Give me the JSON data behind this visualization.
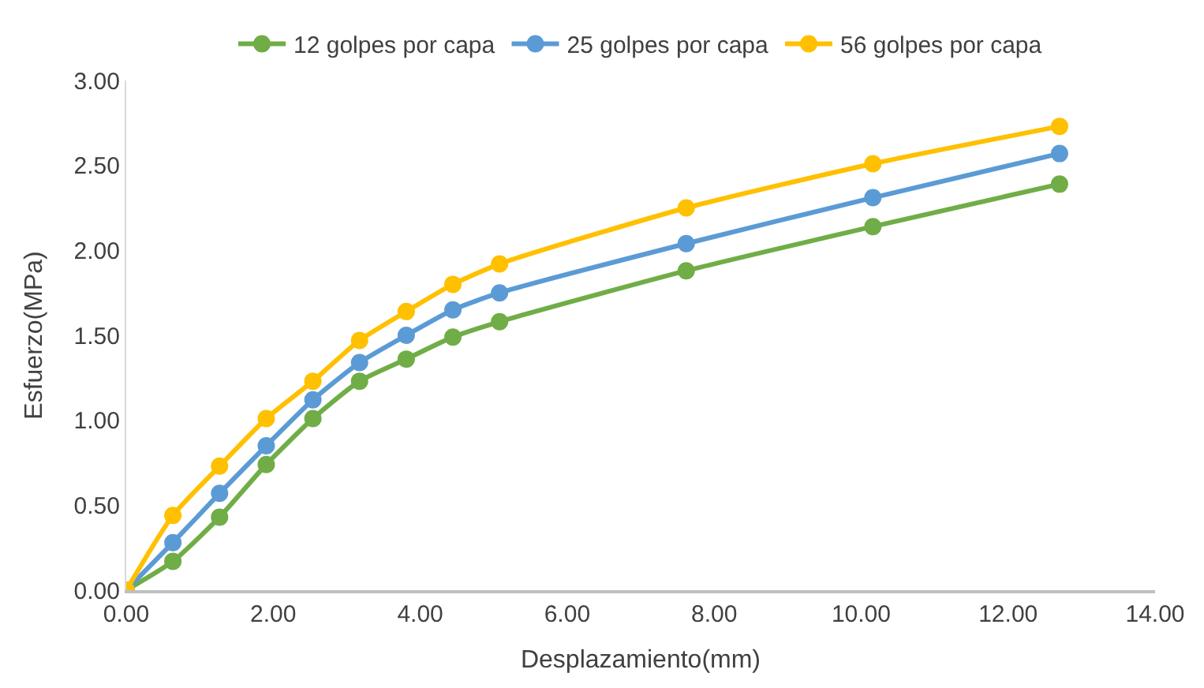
{
  "chart_data": {
    "type": "line",
    "xlabel": "Desplazamiento(mm)",
    "ylabel": "Esfuerzo(MPa)",
    "x": [
      0,
      0.635,
      1.27,
      1.905,
      2.54,
      3.175,
      3.81,
      4.445,
      5.08,
      7.62,
      10.16,
      12.7
    ],
    "series": [
      {
        "name": "12 golpes por capa",
        "color": "#70ad47",
        "values": [
          0,
          0.17,
          0.43,
          0.74,
          1.01,
          1.23,
          1.36,
          1.49,
          1.58,
          1.88,
          2.14,
          2.39
        ]
      },
      {
        "name": "25 golpes por capa",
        "color": "#5b9bd5",
        "values": [
          0,
          0.28,
          0.57,
          0.85,
          1.12,
          1.34,
          1.5,
          1.65,
          1.75,
          2.04,
          2.31,
          2.57
        ]
      },
      {
        "name": "56 golpes por capa",
        "color": "#ffc000",
        "values": [
          0,
          0.44,
          0.73,
          1.01,
          1.23,
          1.47,
          1.64,
          1.8,
          1.92,
          2.25,
          2.51,
          2.73
        ]
      }
    ],
    "xlim": [
      0,
      14
    ],
    "xticks": [
      {
        "value": 0,
        "label": "0.00"
      },
      {
        "value": 2,
        "label": "2.00"
      },
      {
        "value": 4,
        "label": "4.00"
      },
      {
        "value": 6,
        "label": "6.00"
      },
      {
        "value": 8,
        "label": "8.00"
      },
      {
        "value": 10,
        "label": "10.00"
      },
      {
        "value": 12,
        "label": "12.00"
      },
      {
        "value": 14,
        "label": "14.00"
      }
    ],
    "ylim": [
      0,
      3
    ],
    "yticks": [
      {
        "value": 0,
        "label": "0.00"
      },
      {
        "value": 0.5,
        "label": "0.50"
      },
      {
        "value": 1,
        "label": "1.00"
      },
      {
        "value": 1.5,
        "label": "1.50"
      },
      {
        "value": 2,
        "label": "2.00"
      },
      {
        "value": 2.5,
        "label": "2.50"
      },
      {
        "value": 3,
        "label": "3.00"
      }
    ],
    "grid": false,
    "legend": "top",
    "marker": "circle",
    "line_style": "solid"
  }
}
